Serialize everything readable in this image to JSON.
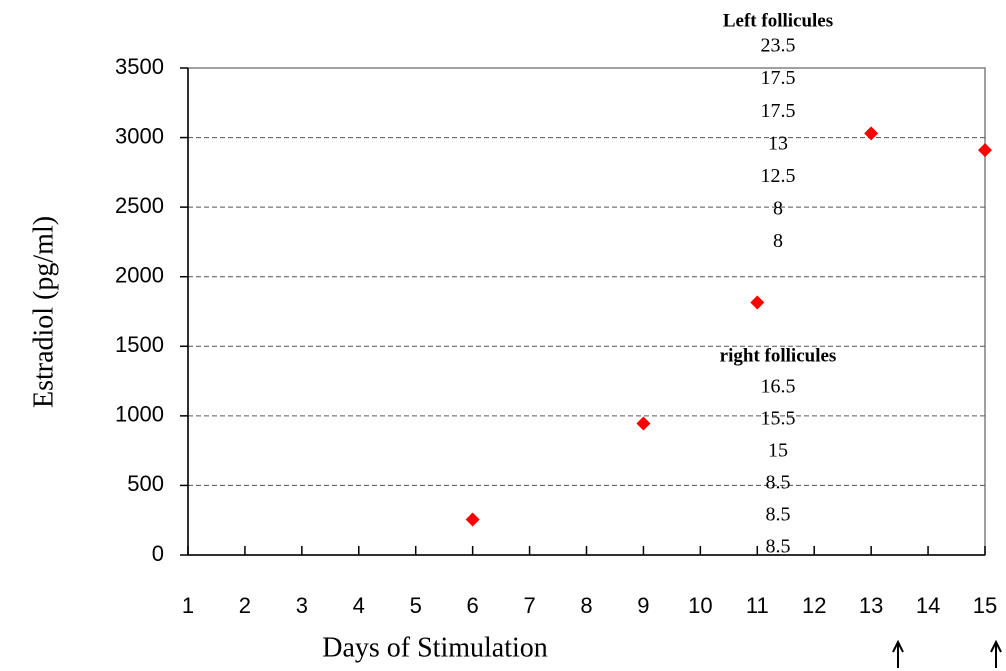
{
  "chart_data": {
    "type": "scatter",
    "x_label": "Days of Stimulation",
    "y_label": "Estradiol (pg/ml)",
    "series": [
      {
        "name": "Estradiol",
        "color": "#ff0000",
        "x": [
          6,
          9,
          11,
          13,
          15
        ],
        "values": [
          255,
          945,
          1815,
          3030,
          2910
        ]
      }
    ],
    "xlim": [
      1,
      15
    ],
    "xticks": [
      1,
      2,
      3,
      4,
      5,
      6,
      7,
      8,
      9,
      10,
      11,
      12,
      13,
      14,
      15
    ],
    "ylim": [
      0,
      3500
    ],
    "yticks": [
      0,
      500,
      1000,
      1500,
      2000,
      2500,
      3000,
      3500
    ],
    "grid": true,
    "annotations": [
      {
        "title": "Left follicules",
        "values": [
          23.5,
          17.5,
          17.5,
          13,
          12.5,
          8,
          8
        ]
      },
      {
        "title": "right follicules",
        "values": [
          16.5,
          15.5,
          15,
          8.5,
          8.5,
          8.5
        ]
      }
    ]
  }
}
